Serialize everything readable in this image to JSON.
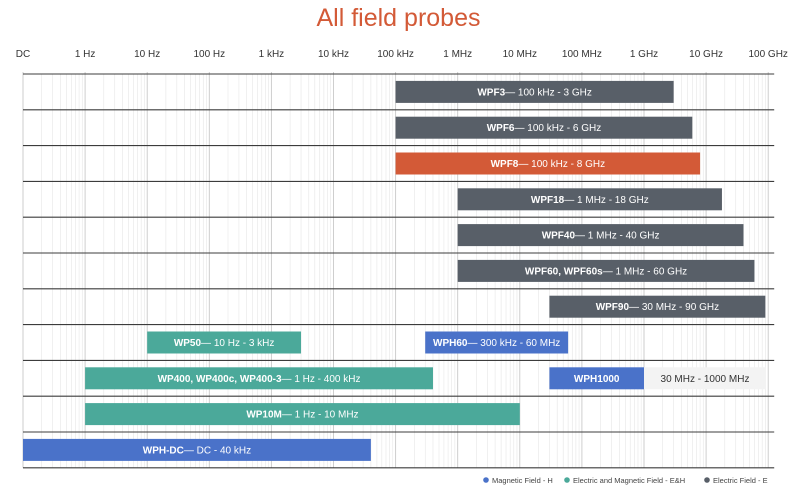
{
  "chart_data": {
    "type": "bar",
    "orientation": "horizontal",
    "title": "All field probes",
    "x_scale": "log",
    "grid": true,
    "x_ticks": [
      "DC",
      "1 Hz",
      "10 Hz",
      "100 Hz",
      "1 kHz",
      "10 kHz",
      "100 kHz",
      "1 MHz",
      "10 MHz",
      "100 MHz",
      "1 GHz",
      "10 GHz",
      "100 GHz"
    ],
    "field_colors": {
      "H": "#4a72c9",
      "EH": "#4ba99a",
      "E": "#585f68",
      "highlight": "#d35a37"
    },
    "bars": [
      {
        "row": 0,
        "name": "WPF3",
        "range_text": " 100 kHz - 3 GHz",
        "from": "100 kHz",
        "to": "3 GHz",
        "field": "E"
      },
      {
        "row": 1,
        "name": "WPF6",
        "range_text": " 100 kHz - 6 GHz",
        "from": "100 kHz",
        "to": "6 GHz",
        "field": "E"
      },
      {
        "row": 2,
        "name": "WPF8",
        "range_text": " 100 kHz - 8 GHz",
        "from": "100 kHz",
        "to": "8 GHz",
        "field": "E",
        "highlight": true
      },
      {
        "row": 3,
        "name": "WPF18",
        "range_text": " 1 MHz - 18 GHz",
        "from": "1 MHz",
        "to": "18 GHz",
        "field": "E"
      },
      {
        "row": 4,
        "name": "WPF40",
        "range_text": " 1 MHz - 40 GHz",
        "from": "1 MHz",
        "to": "40 GHz",
        "field": "E"
      },
      {
        "row": 5,
        "name": "WPF60, WPF60s",
        "range_text": " 1 MHz - 60 GHz",
        "from": "1 MHz",
        "to": "60 GHz",
        "field": "E"
      },
      {
        "row": 6,
        "name": "WPF90",
        "range_text": " 30 MHz - 90 GHz",
        "from": "30 MHz",
        "to": "90 GHz",
        "field": "E"
      },
      {
        "row": 7,
        "name": "WP50",
        "range_text": " 10 Hz - 3 kHz",
        "from": "10 Hz",
        "to": "3 kHz",
        "field": "EH"
      },
      {
        "row": 7,
        "name": "WPH60",
        "range_text": " 300 kHz - 60 MHz",
        "from": "300 kHz",
        "to": "60 MHz",
        "field": "H"
      },
      {
        "row": 8,
        "name": "WP400, WP400c, WP400-3",
        "range_text": " 1 Hz - 400 kHz",
        "from": "1 Hz",
        "to": "400 kHz",
        "field": "EH"
      },
      {
        "row": 8,
        "name": "WPH1000",
        "range_text": "30 MHz - 1000 MHz",
        "from": "30 MHz",
        "to": "1000 MHz",
        "field": "H",
        "label_outside": true
      },
      {
        "row": 9,
        "name": "WP10M",
        "range_text": " 1 Hz - 10 MHz",
        "from": "1 Hz",
        "to": "10 MHz",
        "field": "EH"
      },
      {
        "row": 10,
        "name": "WPH-DC",
        "range_text": " DC - 40 kHz",
        "from": "DC",
        "to": "40 kHz",
        "field": "H"
      }
    ],
    "legend": [
      {
        "label": "Magnetic Field - H",
        "field": "H"
      },
      {
        "label": "Electric and Magnetic Field - E&H",
        "field": "EH"
      },
      {
        "label": "Electric Field - E",
        "field": "E"
      }
    ]
  }
}
